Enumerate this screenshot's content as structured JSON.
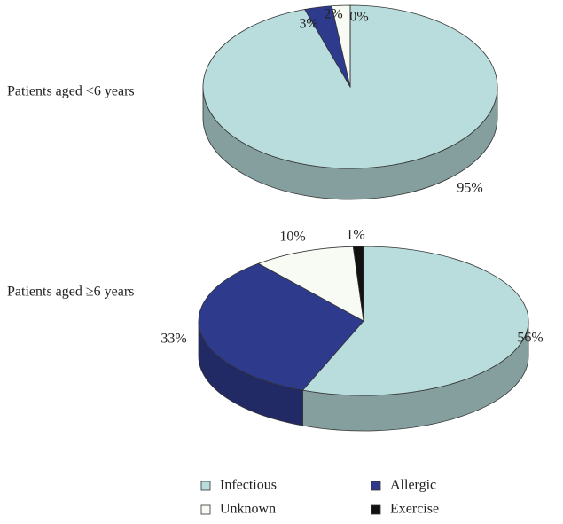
{
  "chart_data": [
    {
      "type": "pie",
      "title": "Patients aged <6 years",
      "categories": [
        "Infectious",
        "Allergic",
        "Unknown",
        "Exercise"
      ],
      "values": [
        95,
        3,
        2,
        0
      ],
      "value_labels": [
        "95%",
        "3%",
        "2%",
        "0%"
      ],
      "colors": [
        "#b9dcdc",
        "#2e3a8c",
        "#f8faf4",
        "#111111"
      ]
    },
    {
      "type": "pie",
      "title": "Patients aged ≥6 years",
      "categories": [
        "Infectious",
        "Allergic",
        "Unknown",
        "Exercise"
      ],
      "values": [
        56,
        33,
        10,
        1
      ],
      "value_labels": [
        "56%",
        "33%",
        "10%",
        "1%"
      ],
      "colors": [
        "#b9dcdc",
        "#2e3a8c",
        "#f8faf4",
        "#111111"
      ]
    }
  ]
}
